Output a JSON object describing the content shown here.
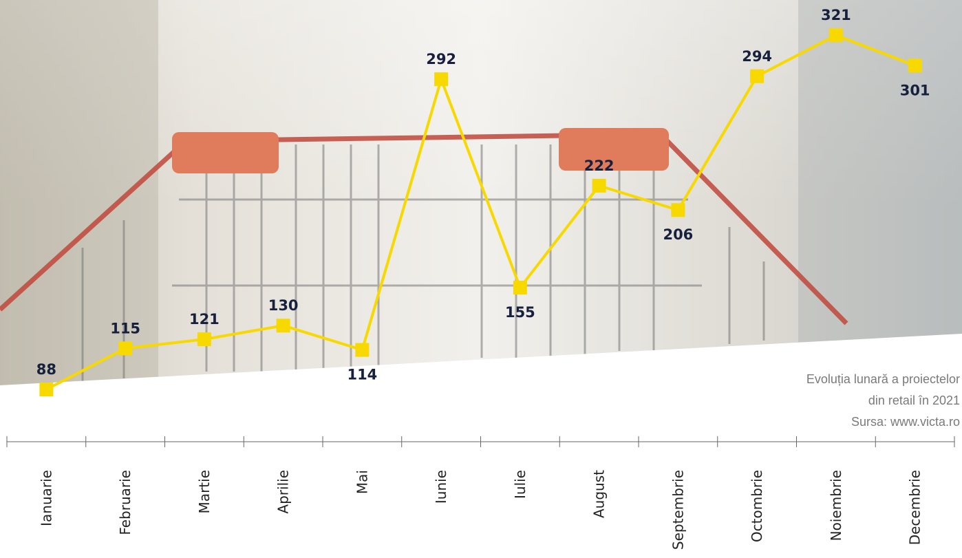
{
  "chart_data": {
    "type": "line",
    "categories": [
      "Ianuarie",
      "Februarie",
      "Martie",
      "Aprilie",
      "Mai",
      "Iunie",
      "Iulie",
      "August",
      "Septembrie",
      "Octombrie",
      "Noiembrie",
      "Decembrie"
    ],
    "values": [
      88,
      115,
      121,
      130,
      114,
      292,
      155,
      222,
      206,
      294,
      321,
      301
    ],
    "color": "#f7d900",
    "caption": [
      "Evoluția lunară a proiectelor",
      "din retail în 2021",
      "Sursa: www.victa.ro"
    ]
  }
}
